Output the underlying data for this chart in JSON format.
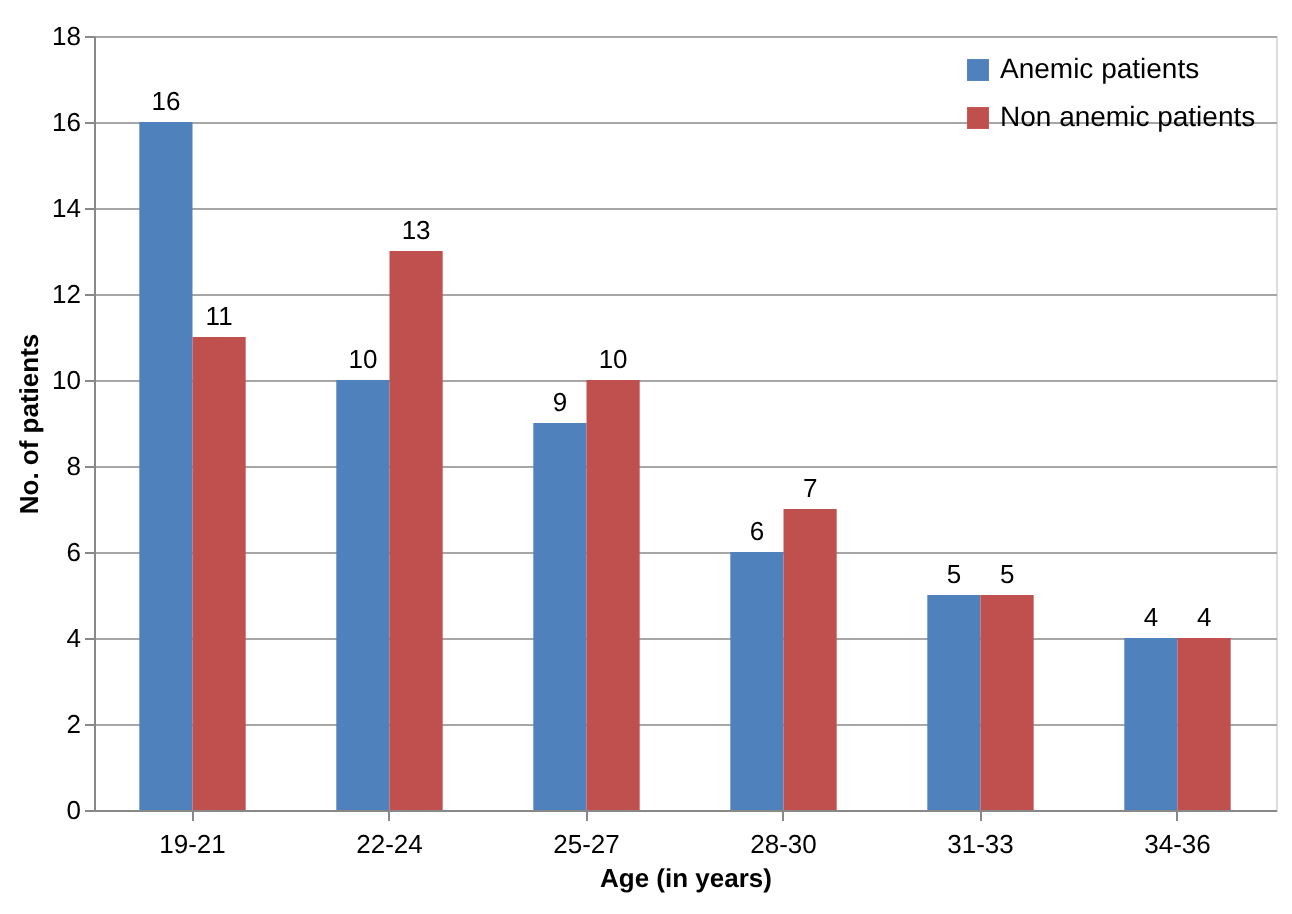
{
  "chart_data": {
    "type": "bar",
    "xlabel": "Age (in years)",
    "ylabel": "No. of patients",
    "categories": [
      "19-21",
      "22-24",
      "25-27",
      "28-30",
      "31-33",
      "34-36"
    ],
    "series": [
      {
        "name": "Anemic patients",
        "color": "#4f81bd",
        "values": [
          16,
          10,
          9,
          6,
          5,
          4
        ]
      },
      {
        "name": "Non anemic patients",
        "color": "#c0504d",
        "values": [
          11,
          13,
          10,
          7,
          5,
          4
        ]
      }
    ],
    "ylim": [
      0,
      18
    ],
    "yticks": [
      0,
      2,
      4,
      6,
      8,
      10,
      12,
      14,
      16,
      18
    ],
    "grid": "y",
    "legend": "top right",
    "data_labels": true
  }
}
